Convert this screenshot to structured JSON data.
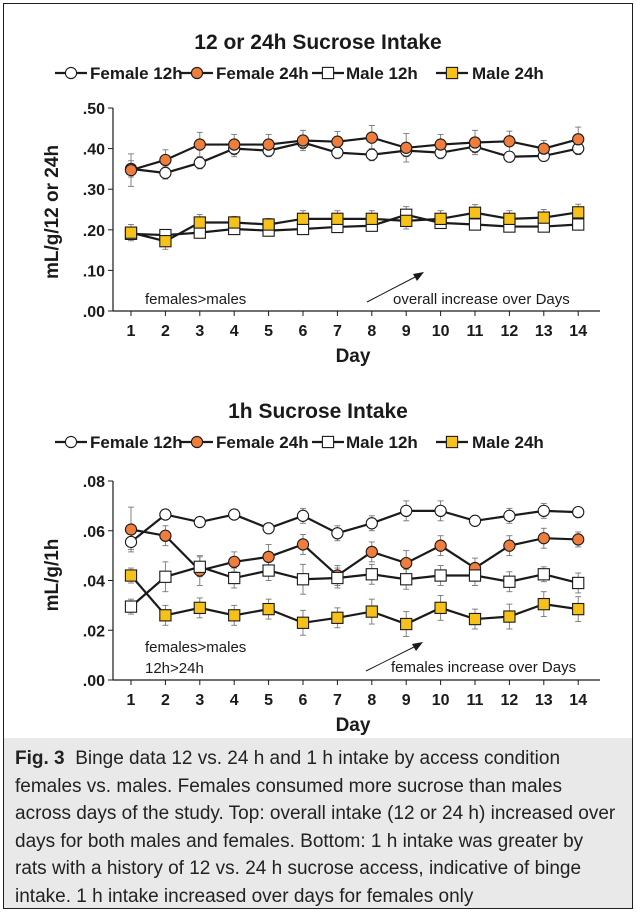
{
  "figure": {
    "caption_label": "Fig. 3",
    "caption_text": "Binge data 12 vs. 24 h and 1 h intake by access condition females vs. males. Females consumed more sucrose than males across days of the study. Top: overall intake (12 or 24 h) increased over days for both males and females. Bottom: 1 h intake was greater by rats with a history of 12 vs. 24 h sucrose access, indicative of binge intake. 1 h intake increased over days for females only"
  },
  "colors": {
    "female_24h_fill": "#ef7d3c",
    "male_24h_fill": "#f6c21a",
    "open_fill": "#ffffff",
    "line": "#1a1a1a",
    "caption_background": "#e9e9e9"
  },
  "chart_data": [
    {
      "type": "line",
      "title": "12 or 24h Sucrose Intake",
      "xlabel": "Day",
      "ylabel": "mL/g/12 or 24h",
      "categories": [
        "1",
        "2",
        "3",
        "4",
        "5",
        "6",
        "7",
        "8",
        "9",
        "10",
        "11",
        "12",
        "13",
        "14"
      ],
      "ylim": [
        0,
        0.5
      ],
      "yticks": [
        ".00",
        ".10",
        ".20",
        ".30",
        ".40",
        ".50"
      ],
      "grid": false,
      "legend_position": "top",
      "series": [
        {
          "name": "Female 12h",
          "marker": "circle-open",
          "values": [
            0.35,
            0.34,
            0.365,
            0.4,
            0.395,
            0.415,
            0.39,
            0.385,
            0.395,
            0.39,
            0.405,
            0.38,
            0.382,
            0.4
          ],
          "errors": [
            0.02,
            0.015,
            0.015,
            0.02,
            0.015,
            0.015,
            0.015,
            0.015,
            0.015,
            0.015,
            0.015,
            0.012,
            0.012,
            0.015
          ]
        },
        {
          "name": "Female 24h",
          "marker": "circle-filled",
          "values": [
            0.347,
            0.372,
            0.41,
            0.41,
            0.41,
            0.42,
            0.417,
            0.427,
            0.402,
            0.41,
            0.415,
            0.418,
            0.4,
            0.423
          ],
          "errors": [
            0.04,
            0.025,
            0.03,
            0.025,
            0.025,
            0.025,
            0.025,
            0.03,
            0.035,
            0.025,
            0.03,
            0.025,
            0.02,
            0.03
          ]
        },
        {
          "name": "Male 12h",
          "marker": "square-open",
          "values": [
            0.19,
            0.187,
            0.193,
            0.202,
            0.198,
            0.202,
            0.207,
            0.21,
            0.237,
            0.217,
            0.213,
            0.208,
            0.208,
            0.213
          ],
          "errors": [
            0.01,
            0.01,
            0.01,
            0.01,
            0.008,
            0.008,
            0.008,
            0.008,
            0.02,
            0.01,
            0.01,
            0.008,
            0.008,
            0.008
          ]
        },
        {
          "name": "Male 24h",
          "marker": "square-filled",
          "values": [
            0.193,
            0.172,
            0.218,
            0.218,
            0.213,
            0.227,
            0.227,
            0.227,
            0.222,
            0.227,
            0.242,
            0.227,
            0.23,
            0.243
          ],
          "errors": [
            0.02,
            0.02,
            0.02,
            0.015,
            0.015,
            0.02,
            0.02,
            0.02,
            0.02,
            0.02,
            0.02,
            0.02,
            0.02,
            0.02
          ]
        }
      ],
      "annotations": [
        {
          "text": "females>males"
        },
        {
          "text": "overall increase over Days"
        }
      ]
    },
    {
      "type": "line",
      "title": "1h Sucrose Intake",
      "xlabel": "Day",
      "ylabel": "mL/g/1h",
      "categories": [
        "1",
        "2",
        "3",
        "4",
        "5",
        "6",
        "7",
        "8",
        "9",
        "10",
        "11",
        "12",
        "13",
        "14"
      ],
      "ylim": [
        0,
        0.08
      ],
      "yticks": [
        ".00",
        ".02",
        ".04",
        ".06",
        ".08"
      ],
      "grid": false,
      "legend_position": "top",
      "series": [
        {
          "name": "Female 12h",
          "marker": "circle-open",
          "values": [
            0.0555,
            0.0665,
            0.0635,
            0.0665,
            0.061,
            0.066,
            0.059,
            0.063,
            0.068,
            0.068,
            0.064,
            0.066,
            0.068,
            0.0675
          ],
          "errors": [
            0.003,
            0.002,
            0.002,
            0.002,
            0.002,
            0.003,
            0.003,
            0.003,
            0.004,
            0.004,
            0.002,
            0.003,
            0.003,
            0.002
          ]
        },
        {
          "name": "Female 24h",
          "marker": "circle-filled",
          "values": [
            0.0605,
            0.058,
            0.044,
            0.0475,
            0.0495,
            0.0545,
            0.042,
            0.0515,
            0.047,
            0.054,
            0.045,
            0.054,
            0.057,
            0.0565
          ],
          "errors": [
            0.009,
            0.004,
            0.006,
            0.004,
            0.005,
            0.004,
            0.004,
            0.004,
            0.005,
            0.004,
            0.004,
            0.004,
            0.004,
            0.003
          ]
        },
        {
          "name": "Male 12h",
          "marker": "square-open",
          "values": [
            0.0295,
            0.0415,
            0.0455,
            0.041,
            0.044,
            0.0405,
            0.041,
            0.0425,
            0.0405,
            0.042,
            0.042,
            0.0395,
            0.0425,
            0.039
          ],
          "errors": [
            0.003,
            0.006,
            0.004,
            0.004,
            0.004,
            0.006,
            0.004,
            0.004,
            0.004,
            0.004,
            0.004,
            0.004,
            0.003,
            0.004
          ]
        },
        {
          "name": "Male 24h",
          "marker": "square-filled",
          "values": [
            0.042,
            0.026,
            0.029,
            0.026,
            0.0285,
            0.023,
            0.025,
            0.0275,
            0.0225,
            0.029,
            0.0245,
            0.0255,
            0.0305,
            0.0285
          ],
          "errors": [
            0.003,
            0.004,
            0.004,
            0.004,
            0.004,
            0.005,
            0.004,
            0.005,
            0.005,
            0.005,
            0.004,
            0.005,
            0.005,
            0.005
          ]
        }
      ],
      "annotations": [
        {
          "text": "females>males"
        },
        {
          "text": "12h>24h"
        },
        {
          "text": "females increase over Days"
        }
      ]
    }
  ]
}
